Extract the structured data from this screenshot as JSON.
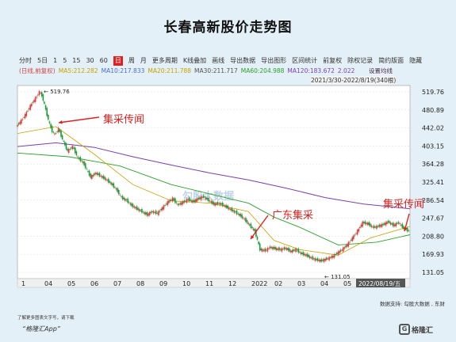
{
  "title": "长春高新股价走势图",
  "toolbar": {
    "items": [
      "分时",
      "5日",
      "1",
      "5",
      "15",
      "30",
      "60",
      "日",
      "周",
      "月",
      "更多周期",
      "K线叠加",
      "画线",
      "导出数据",
      "导出图形",
      "区间统计",
      "前复权",
      "除权记录",
      "简约版面",
      "隐藏"
    ],
    "active": "日"
  },
  "ma_legend": {
    "prefix": "(日线,前复权)",
    "items": [
      {
        "label": "MA5:212.282",
        "color": "#c8a000"
      },
      {
        "label": "MA10:217.833",
        "color": "#4a6fd0"
      },
      {
        "label": "MA20:211.788",
        "color": "#c8a000"
      },
      {
        "label": "MA30:211.717",
        "color": "#555555"
      },
      {
        "label": "MA60:204.988",
        "color": "#2aa02a"
      },
      {
        "label": "MA120:183.672",
        "color": "#7a3fb0"
      },
      {
        "label": "2.022",
        "color": "#7a3fb0"
      }
    ],
    "setting_label": "设置均线"
  },
  "range_label": "2021/3/30-2022/8/19(340根)",
  "date_label": "2022/08/19/五",
  "source": "数据支持: 勾股大数据 , 东财",
  "note": "了解更多图表文字写，请下载",
  "app_name": "“格隆汇App”",
  "logo_text": "格隆汇",
  "watermark": "勾股大数据",
  "annotations": [
    {
      "text": "集采传闻",
      "color": "#e02020"
    },
    {
      "text": "广东集采",
      "color": "#e02020"
    },
    {
      "text": "集采传闻",
      "color": "#e02020"
    }
  ],
  "chart_data": {
    "type": "line",
    "y_ticks": [
      519.76,
      480.89,
      442.02,
      403.15,
      364.28,
      325.41,
      286.54,
      247.67,
      208.8,
      169.93,
      131.05
    ],
    "ylim": [
      131.05,
      519.76
    ],
    "x_ticks": [
      "1",
      "04",
      "05",
      "06",
      "07",
      "08",
      "09",
      "10",
      "11",
      "12",
      "2022",
      "02",
      "03",
      "04",
      "05",
      "06"
    ],
    "high_label": "519.76",
    "low_label": "131.05",
    "price": [
      [
        0,
        445
      ],
      [
        4,
        458
      ],
      [
        7,
        470
      ],
      [
        10,
        485
      ],
      [
        13,
        498
      ],
      [
        16,
        510
      ],
      [
        18,
        520
      ],
      [
        20,
        512
      ],
      [
        22,
        492
      ],
      [
        24,
        470
      ],
      [
        26,
        450
      ],
      [
        28,
        435
      ],
      [
        30,
        428
      ],
      [
        33,
        440
      ],
      [
        36,
        418
      ],
      [
        40,
        392
      ],
      [
        44,
        402
      ],
      [
        48,
        378
      ],
      [
        52,
        368
      ],
      [
        55,
        352
      ],
      [
        58,
        336
      ],
      [
        62,
        345
      ],
      [
        66,
        338
      ],
      [
        70,
        331
      ],
      [
        74,
        322
      ],
      [
        78,
        310
      ],
      [
        82,
        292
      ],
      [
        86,
        286
      ],
      [
        90,
        275
      ],
      [
        94,
        268
      ],
      [
        98,
        262
      ],
      [
        102,
        255
      ],
      [
        106,
        262
      ],
      [
        110,
        258
      ],
      [
        114,
        270
      ],
      [
        118,
        282
      ],
      [
        122,
        290
      ],
      [
        126,
        276
      ],
      [
        130,
        282
      ],
      [
        134,
        288
      ],
      [
        138,
        283
      ],
      [
        142,
        290
      ],
      [
        146,
        294
      ],
      [
        150,
        286
      ],
      [
        154,
        278
      ],
      [
        158,
        280
      ],
      [
        162,
        275
      ],
      [
        166,
        268
      ],
      [
        170,
        262
      ],
      [
        174,
        255
      ],
      [
        178,
        245
      ],
      [
        182,
        232
      ],
      [
        186,
        220
      ],
      [
        190,
        180
      ],
      [
        194,
        178
      ],
      [
        198,
        185
      ],
      [
        202,
        182
      ],
      [
        206,
        180
      ],
      [
        210,
        183
      ],
      [
        214,
        176
      ],
      [
        218,
        180
      ],
      [
        222,
        172
      ],
      [
        226,
        168
      ],
      [
        230,
        162
      ],
      [
        234,
        158
      ],
      [
        238,
        156
      ],
      [
        242,
        160
      ],
      [
        246,
        164
      ],
      [
        250,
        172
      ],
      [
        254,
        180
      ],
      [
        258,
        190
      ],
      [
        262,
        205
      ],
      [
        266,
        220
      ],
      [
        270,
        238
      ],
      [
        274,
        236
      ],
      [
        278,
        228
      ],
      [
        282,
        230
      ],
      [
        286,
        234
      ],
      [
        290,
        240
      ],
      [
        294,
        232
      ],
      [
        298,
        238
      ],
      [
        302,
        226
      ],
      [
        306,
        220
      ]
    ],
    "ma_slow": [
      [
        0,
        402
      ],
      [
        30,
        410
      ],
      [
        60,
        400
      ],
      [
        90,
        380
      ],
      [
        120,
        362
      ],
      [
        150,
        345
      ],
      [
        180,
        330
      ],
      [
        210,
        312
      ],
      [
        240,
        292
      ],
      [
        270,
        278
      ],
      [
        306,
        268
      ]
    ],
    "ma_mid": [
      [
        0,
        430
      ],
      [
        30,
        445
      ],
      [
        60,
        385
      ],
      [
        90,
        320
      ],
      [
        120,
        285
      ],
      [
        150,
        280
      ],
      [
        180,
        262
      ],
      [
        200,
        200
      ],
      [
        220,
        180
      ],
      [
        250,
        168
      ],
      [
        275,
        205
      ],
      [
        306,
        230
      ]
    ],
    "ma_long": [
      [
        0,
        388
      ],
      [
        40,
        380
      ],
      [
        80,
        360
      ],
      [
        120,
        320
      ],
      [
        150,
        300
      ],
      [
        180,
        280
      ],
      [
        200,
        250
      ],
      [
        220,
        228
      ],
      [
        250,
        190
      ],
      [
        280,
        196
      ],
      [
        306,
        212
      ]
    ]
  }
}
